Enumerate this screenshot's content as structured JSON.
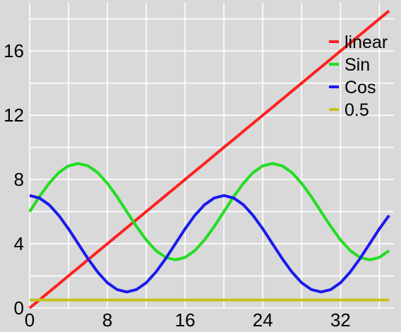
{
  "chart_data": {
    "type": "line",
    "title": "",
    "xlabel": "",
    "ylabel": "",
    "xlim": [
      0,
      37.5
    ],
    "ylim": [
      0,
      19
    ],
    "grid": true,
    "legend_position": "top-right",
    "background": "#d9d9d9",
    "x_ticks": [
      0,
      8,
      16,
      24,
      32
    ],
    "x_tick_labels": [
      "0",
      "8",
      "16",
      "24",
      "32"
    ],
    "y_ticks": [
      0,
      4,
      8,
      12,
      16
    ],
    "y_tick_labels": [
      "0",
      "4",
      "8",
      "12",
      "16"
    ],
    "x": [
      0,
      1,
      2,
      3,
      4,
      5,
      6,
      7,
      8,
      9,
      10,
      11,
      12,
      13,
      14,
      15,
      16,
      17,
      18,
      19,
      20,
      21,
      22,
      23,
      24,
      25,
      26,
      27,
      28,
      29,
      30,
      31,
      32,
      33,
      34,
      35,
      36,
      37
    ],
    "series": [
      {
        "name": "linear",
        "color": "#ff2020",
        "values": [
          0,
          0.5,
          1,
          1.5,
          2,
          2.5,
          3,
          3.5,
          4,
          4.5,
          5,
          5.5,
          6,
          6.5,
          7,
          7.5,
          8,
          8.5,
          9,
          9.5,
          10,
          10.5,
          11,
          11.5,
          12,
          12.5,
          13,
          13.5,
          14,
          14.5,
          15,
          15.5,
          16,
          16.5,
          17,
          17.5,
          18,
          18.5
        ]
      },
      {
        "name": "Sin",
        "color": "#22dd22",
        "values": [
          6,
          6.93,
          7.76,
          8.43,
          8.85,
          9,
          8.85,
          8.43,
          7.76,
          6.93,
          6,
          5.07,
          4.24,
          3.57,
          3.15,
          3,
          3.15,
          3.57,
          4.24,
          5.07,
          6,
          6.93,
          7.76,
          8.43,
          8.85,
          9,
          8.85,
          8.43,
          7.76,
          6.93,
          6,
          5.07,
          4.24,
          3.57,
          3.15,
          3,
          3.15,
          3.57
        ]
      },
      {
        "name": "Cos",
        "color": "#1a1aee",
        "values": [
          7,
          6.85,
          6.43,
          5.76,
          4.93,
          4,
          3.07,
          2.24,
          1.57,
          1.15,
          1,
          1.15,
          1.57,
          2.24,
          3.07,
          4,
          4.93,
          5.76,
          6.43,
          6.85,
          7,
          6.85,
          6.43,
          5.76,
          4.93,
          4,
          3.07,
          2.24,
          1.57,
          1.15,
          1,
          1.15,
          1.57,
          2.24,
          3.07,
          4,
          4.93,
          5.76
        ]
      },
      {
        "name": "0.5",
        "color": "#c8c020",
        "values": [
          0.5,
          0.5,
          0.5,
          0.5,
          0.5,
          0.5,
          0.5,
          0.5,
          0.5,
          0.5,
          0.5,
          0.5,
          0.5,
          0.5,
          0.5,
          0.5,
          0.5,
          0.5,
          0.5,
          0.5,
          0.5,
          0.5,
          0.5,
          0.5,
          0.5,
          0.5,
          0.5,
          0.5,
          0.5,
          0.5,
          0.5,
          0.5,
          0.5,
          0.5,
          0.5,
          0.5,
          0.5,
          0.5
        ]
      }
    ]
  }
}
